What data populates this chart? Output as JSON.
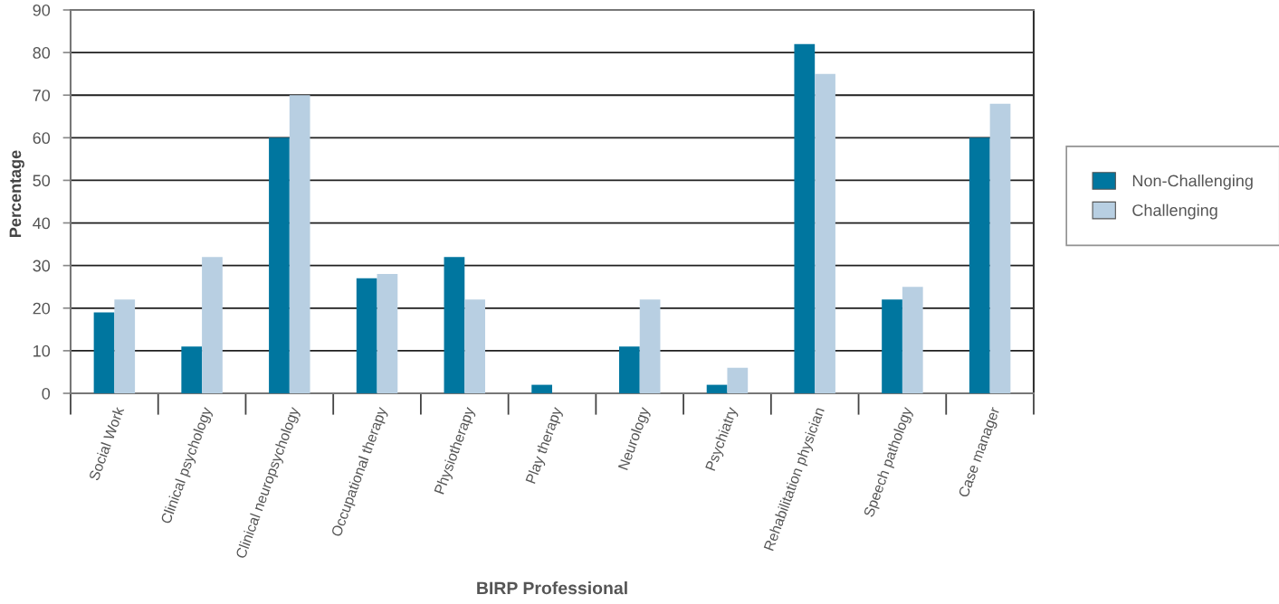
{
  "chart_data": {
    "type": "bar",
    "xlabel": "BIRP Professional",
    "ylabel": "Percentage",
    "categories": [
      "Social Work",
      "Clinical psychology",
      "Clinical neuropsychology",
      "Occupational therapy",
      "Physiotherapy",
      "Play therapy",
      "Neurology",
      "Psychiatry",
      "Rehabilitation physician",
      "Speech pathology",
      "Case manager"
    ],
    "series": [
      {
        "name": "Non-Challenging",
        "color": "#00769f",
        "values": [
          19,
          11,
          60,
          27,
          32,
          2,
          11,
          2,
          82,
          22,
          60
        ]
      },
      {
        "name": "Challenging",
        "color": "#b8cfe2",
        "values": [
          22,
          32,
          70,
          28,
          22,
          0,
          22,
          6,
          75,
          25,
          68
        ]
      }
    ],
    "ylim": [
      0,
      90
    ],
    "yticks": [
      0,
      10,
      20,
      30,
      40,
      50,
      60,
      70,
      80,
      90
    ],
    "grid": "y",
    "legend": "right"
  }
}
